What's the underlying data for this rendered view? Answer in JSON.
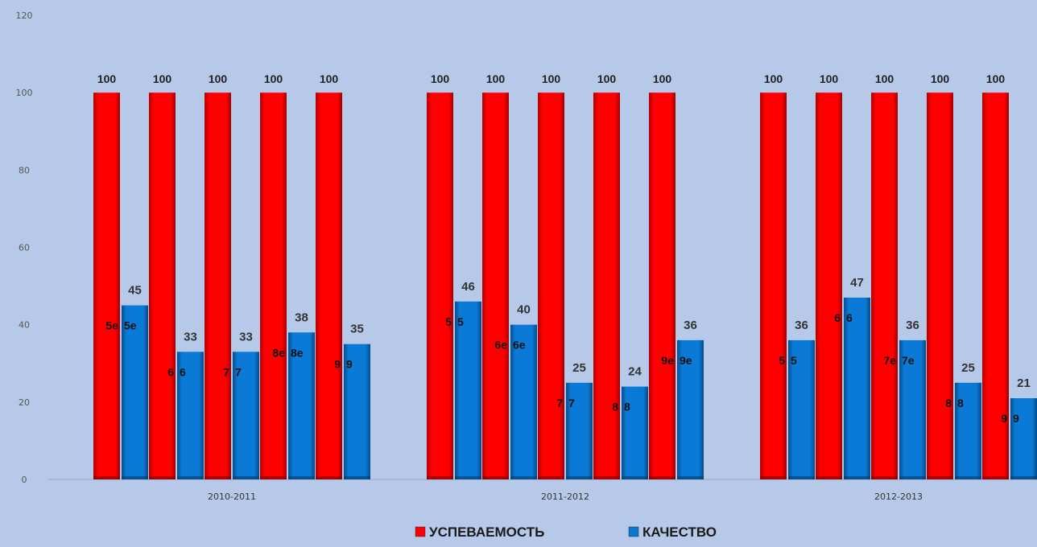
{
  "chart_data": {
    "type": "bar",
    "title": "",
    "xlabel": "",
    "ylabel": "",
    "ylim": [
      0,
      120
    ],
    "yticks": [
      0,
      20,
      40,
      60,
      80,
      100,
      120
    ],
    "grid": false,
    "legend_position": "bottom",
    "groups": [
      {
        "label": "2010-2011",
        "classes": [
          {
            "class_label": "5е",
            "red_label": "5е",
            "blue_label": "5е",
            "red": 100,
            "blue": 45
          },
          {
            "class_label": "6",
            "red_label": "6",
            "blue_label": "6",
            "red": 100,
            "blue": 33
          },
          {
            "class_label": "7",
            "red_label": "7",
            "blue_label": "7",
            "red": 100,
            "blue": 33
          },
          {
            "class_label": "8е",
            "red_label": "8е",
            "blue_label": "8е",
            "red": 100,
            "blue": 38
          },
          {
            "class_label": "9",
            "red_label": "9",
            "blue_label": "9",
            "red": 100,
            "blue": 35
          }
        ]
      },
      {
        "label": "2011-2012",
        "classes": [
          {
            "class_label": "5",
            "red_label": "5",
            "blue_label": "5",
            "red": 100,
            "blue": 46
          },
          {
            "class_label": "6е",
            "red_label": "6е",
            "blue_label": "6е",
            "red": 100,
            "blue": 40
          },
          {
            "class_label": "7",
            "red_label": "7",
            "blue_label": "7",
            "red": 100,
            "blue": 25
          },
          {
            "class_label": "8",
            "red_label": "8",
            "blue_label": "8",
            "red": 100,
            "blue": 24
          },
          {
            "class_label": "9е",
            "red_label": "9е",
            "blue_label": "9е",
            "red": 100,
            "blue": 36
          }
        ]
      },
      {
        "label": "2012-2013",
        "classes": [
          {
            "class_label": "5",
            "red_label": "5",
            "blue_label": "5",
            "red": 100,
            "blue": 36
          },
          {
            "class_label": "6",
            "red_label": "6",
            "blue_label": "6",
            "red": 100,
            "blue": 47
          },
          {
            "class_label": "7е",
            "red_label": "7е",
            "blue_label": "7е",
            "red": 100,
            "blue": 36
          },
          {
            "class_label": "8",
            "red_label": "8",
            "blue_label": "8",
            "red": 100,
            "blue": 25
          },
          {
            "class_label": "9",
            "red_label": "9",
            "blue_label": "9",
            "red": 100,
            "blue": 21
          }
        ]
      }
    ],
    "series": [
      {
        "name": "УСПЕВАЕМОСТЬ",
        "key": "red",
        "color": "#ff0000"
      },
      {
        "name": "КАЧЕСТВО",
        "key": "blue",
        "color": "#0a78d0"
      }
    ]
  }
}
